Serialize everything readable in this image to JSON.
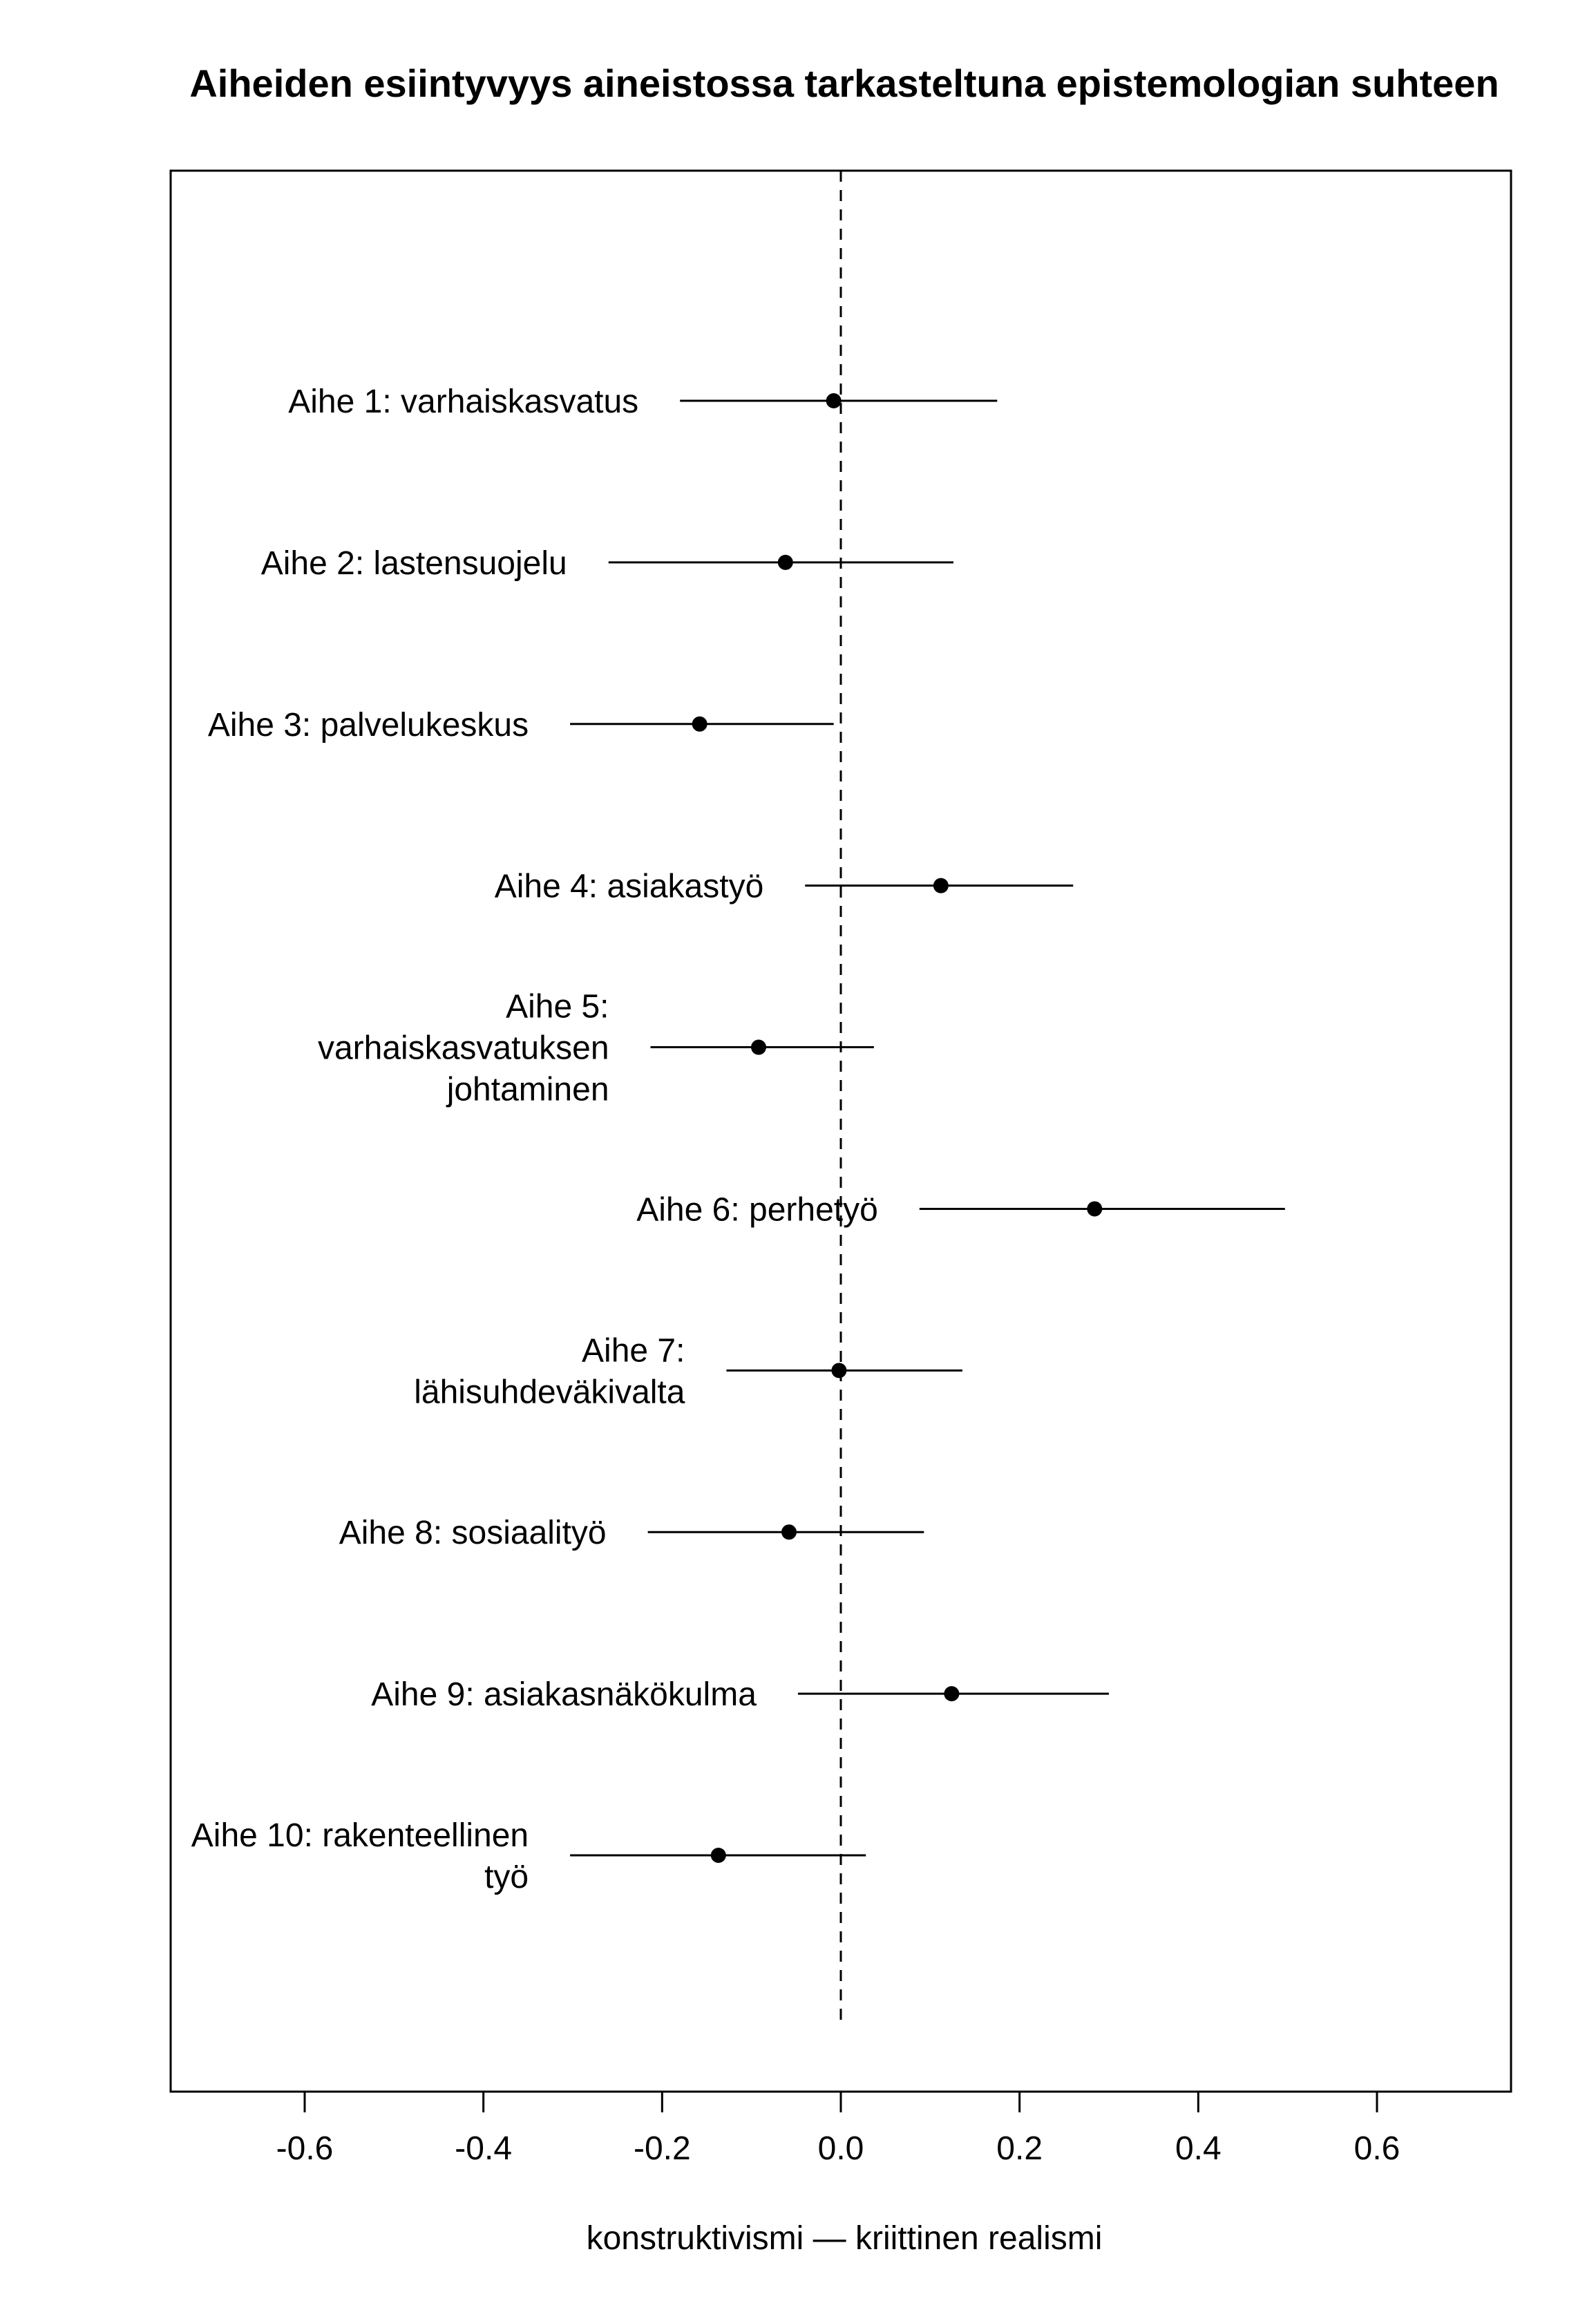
{
  "chart_data": {
    "type": "scatter",
    "title": "Aiheiden esiintyvyys aineistossa tarkasteltuna epistemologian suhteen",
    "xlabel": "konstruktivismi — kriittinen realismi",
    "ylabel": "",
    "xlim": [
      -0.75,
      0.75
    ],
    "xticks": [
      -0.6,
      -0.4,
      -0.2,
      0.0,
      0.2,
      0.4,
      0.6
    ],
    "xtick_labels": [
      "-0.6",
      "-0.4",
      "-0.2",
      "0.0",
      "0.2",
      "0.4",
      "0.6"
    ],
    "reference_line": {
      "x": 0.0,
      "style": "dashed"
    },
    "grid": false,
    "legend": "none",
    "points": [
      {
        "label_lines": [
          "Aihe 1: varhaiskasvatus"
        ],
        "estimate": -0.008,
        "lower": -0.18,
        "upper": 0.175
      },
      {
        "label_lines": [
          "Aihe 2: lastensuojelu"
        ],
        "estimate": -0.062,
        "lower": -0.26,
        "upper": 0.126
      },
      {
        "label_lines": [
          "Aihe 3: palvelukeskus"
        ],
        "estimate": -0.158,
        "lower": -0.303,
        "upper": -0.008
      },
      {
        "label_lines": [
          "Aihe 4: asiakastyö"
        ],
        "estimate": 0.112,
        "lower": -0.04,
        "upper": 0.26
      },
      {
        "label_lines": [
          "Aihe 5:",
          "varhaiskasvatuksen",
          "johtaminen"
        ],
        "estimate": -0.092,
        "lower": -0.213,
        "upper": 0.037
      },
      {
        "label_lines": [
          "Aihe 6: perhetyö"
        ],
        "estimate": 0.284,
        "lower": 0.088,
        "upper": 0.497
      },
      {
        "label_lines": [
          "Aihe 7:",
          "lähisuhdeväkivalta"
        ],
        "estimate": -0.002,
        "lower": -0.128,
        "upper": 0.136
      },
      {
        "label_lines": [
          "Aihe 8: sosiaalityö"
        ],
        "estimate": -0.058,
        "lower": -0.216,
        "upper": 0.093
      },
      {
        "label_lines": [
          "Aihe 9: asiakasnäkökulma"
        ],
        "estimate": 0.124,
        "lower": -0.048,
        "upper": 0.3
      },
      {
        "label_lines": [
          "Aihe 10: rakenteellinen",
          "työ"
        ],
        "estimate": -0.137,
        "lower": -0.303,
        "upper": 0.028
      }
    ]
  }
}
